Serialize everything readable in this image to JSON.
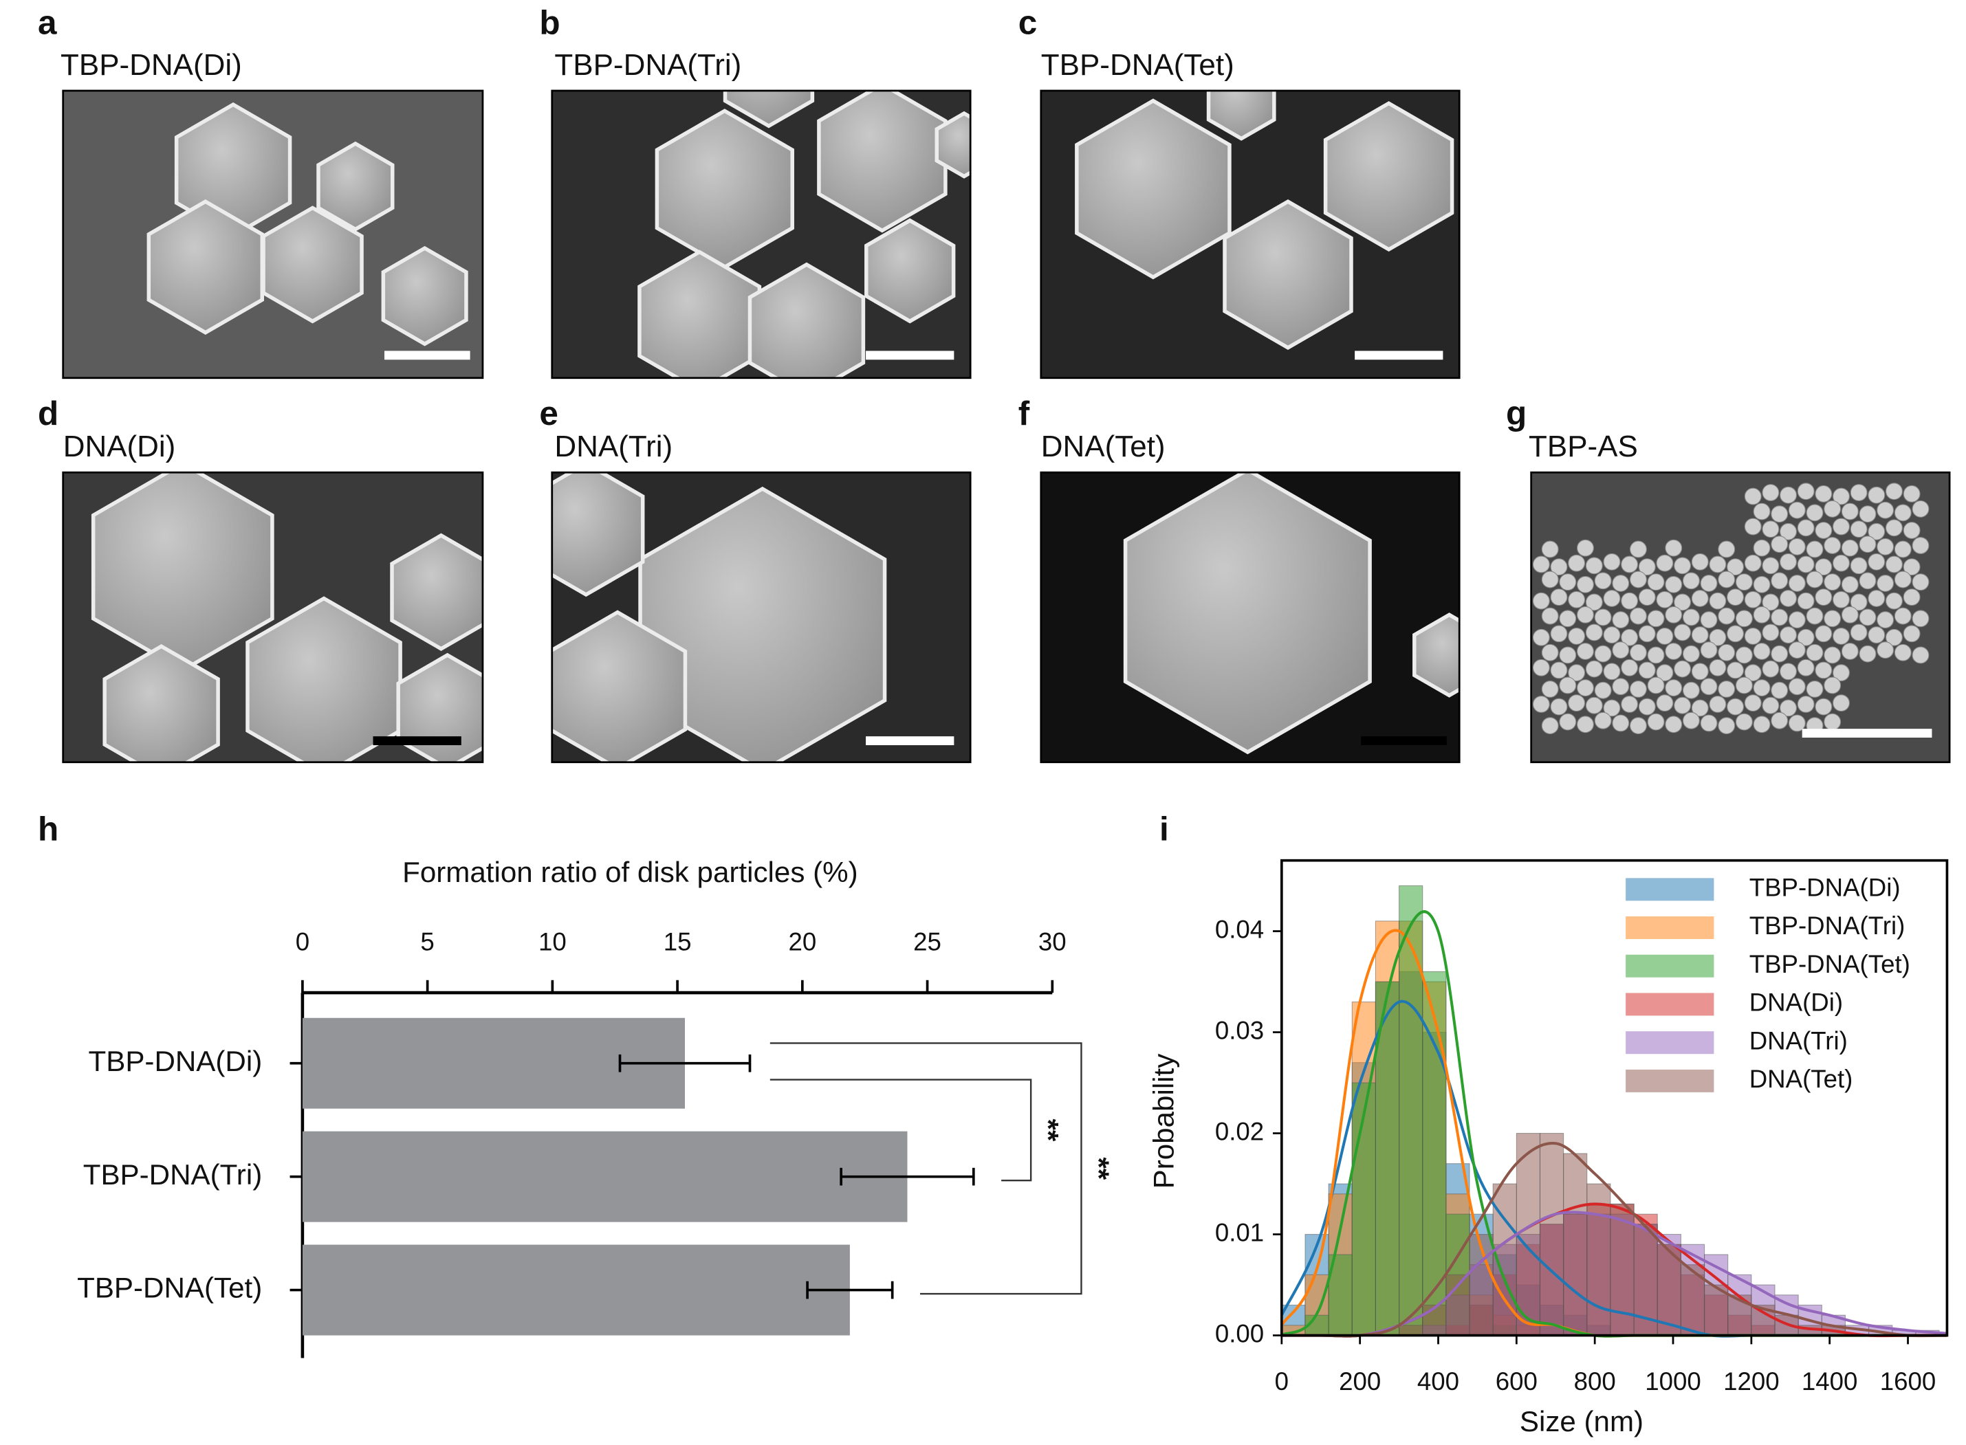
{
  "panels": [
    {
      "letter": "a",
      "caption": "TBP-DNA(Di)"
    },
    {
      "letter": "b",
      "caption": "TBP-DNA(Tri)"
    },
    {
      "letter": "c",
      "caption": "TBP-DNA(Tet)"
    },
    {
      "letter": "d",
      "caption": "DNA(Di)"
    },
    {
      "letter": "e",
      "caption": "DNA(Tri)"
    },
    {
      "letter": "f",
      "caption": "DNA(Tet)"
    },
    {
      "letter": "g",
      "caption": "TBP-AS"
    }
  ],
  "chart_data": [
    {
      "type": "bar",
      "orientation": "horizontal",
      "panel_label": "h",
      "title": "Formation ratio of disk particles (%)",
      "categories": [
        "TBP-DNA(Di)",
        "TBP-DNA(Tri)",
        "TBP-DNA(Tet)"
      ],
      "values": [
        15.3,
        24.2,
        21.9
      ],
      "errors": [
        2.6,
        2.65,
        1.7
      ],
      "color": "#939598",
      "xlim": [
        0,
        30
      ],
      "xticks": [
        0,
        5,
        10,
        15,
        20,
        25,
        30
      ],
      "annotations": [
        {
          "text": "**",
          "from": "TBP-DNA(Di)",
          "to": "TBP-DNA(Tri)"
        },
        {
          "text": "**",
          "from": "TBP-DNA(Di)",
          "to": "TBP-DNA(Tet)"
        }
      ]
    },
    {
      "type": "histogram",
      "panel_label": "i",
      "xlabel": "Size (nm)",
      "ylabel": "Probability",
      "bins": [
        0,
        60,
        120,
        180,
        240,
        300,
        360,
        420,
        480,
        540,
        600,
        660,
        720,
        780,
        840,
        900,
        960,
        1020,
        1080,
        1140,
        1200,
        1260,
        1320,
        1380,
        1440,
        1500,
        1560,
        1620,
        1680
      ],
      "kde_x": [
        0,
        100,
        200,
        300,
        400,
        500,
        600,
        700,
        800,
        900,
        1000,
        1100,
        1200,
        1300,
        1400,
        1500,
        1600,
        1700
      ],
      "opacity": 0.5,
      "legend": "upper right",
      "series": [
        {
          "name": "TBP-DNA(Di)",
          "color": "#1f77b4",
          "values": [
            0.003,
            0.01,
            0.015,
            0.027,
            0.035,
            0.036,
            0.03,
            0.017,
            0.012,
            0.008,
            0.005,
            0.003,
            0.002,
            0.001,
            0,
            0,
            0,
            0,
            0,
            0,
            0,
            0,
            0,
            0,
            0,
            0,
            0,
            0
          ],
          "kde": [
            0.002,
            0.01,
            0.025,
            0.033,
            0.028,
            0.016,
            0.01,
            0.006,
            0.003,
            0.002,
            0.001,
            0,
            0,
            0,
            0,
            0,
            0,
            0
          ]
        },
        {
          "name": "TBP-DNA(Tri)",
          "color": "#ff7f0e",
          "values": [
            0.001,
            0.006,
            0.014,
            0.033,
            0.041,
            0.041,
            0.035,
            0.014,
            0.004,
            0.002,
            0.001,
            0,
            0,
            0,
            0,
            0,
            0,
            0,
            0,
            0,
            0,
            0,
            0,
            0,
            0,
            0,
            0,
            0
          ],
          "kde": [
            0.001,
            0.008,
            0.033,
            0.04,
            0.03,
            0.01,
            0.002,
            0.001,
            0,
            0,
            0,
            0,
            0,
            0,
            0,
            0,
            0,
            0
          ]
        },
        {
          "name": "TBP-DNA(Tet)",
          "color": "#2ca02c",
          "values": [
            0,
            0.002,
            0.008,
            0.025,
            0.035,
            0.0445,
            0.036,
            0.012,
            0.003,
            0.001,
            0,
            0,
            0,
            0,
            0,
            0,
            0,
            0,
            0,
            0,
            0,
            0,
            0,
            0,
            0,
            0,
            0,
            0
          ],
          "kde": [
            0,
            0.003,
            0.02,
            0.038,
            0.04,
            0.015,
            0.003,
            0.001,
            0,
            0,
            0,
            0,
            0,
            0,
            0,
            0,
            0,
            0
          ]
        },
        {
          "name": "DNA(Di)",
          "color": "#d62728",
          "values": [
            0,
            0,
            0,
            0,
            0,
            0,
            0,
            0.001,
            0.003,
            0.006,
            0.009,
            0.011,
            0.012,
            0.013,
            0.013,
            0.012,
            0.009,
            0.006,
            0.004,
            0.002,
            0.001,
            0,
            0,
            0,
            0,
            0,
            0,
            0
          ],
          "kde": [
            0,
            0,
            0,
            0.001,
            0.003,
            0.007,
            0.01,
            0.012,
            0.013,
            0.012,
            0.009,
            0.006,
            0.003,
            0.001,
            0.0005,
            0,
            0,
            0
          ]
        },
        {
          "name": "DNA(Tri)",
          "color": "#9467bd",
          "values": [
            0,
            0,
            0,
            0,
            0,
            0,
            0.001,
            0.004,
            0.007,
            0.009,
            0.01,
            0.011,
            0.012,
            0.012,
            0.012,
            0.011,
            0.01,
            0.009,
            0.008,
            0.006,
            0.005,
            0.004,
            0.003,
            0.002,
            0.001,
            0.001,
            0.0005,
            0.0005
          ],
          "kde": [
            0,
            0,
            0,
            0.001,
            0.003,
            0.007,
            0.01,
            0.012,
            0.012,
            0.011,
            0.009,
            0.007,
            0.005,
            0.003,
            0.002,
            0.001,
            0.0005,
            0.0002
          ]
        },
        {
          "name": "DNA(Tet)",
          "color": "#8c564b",
          "values": [
            0,
            0,
            0,
            0,
            0,
            0.001,
            0.003,
            0.006,
            0.01,
            0.015,
            0.02,
            0.02,
            0.018,
            0.015,
            0.013,
            0.011,
            0.009,
            0.007,
            0.005,
            0.004,
            0.003,
            0.002,
            0.001,
            0.001,
            0,
            0,
            0,
            0
          ],
          "kde": [
            0,
            0,
            0,
            0.001,
            0.005,
            0.011,
            0.017,
            0.019,
            0.016,
            0.012,
            0.008,
            0.005,
            0.003,
            0.002,
            0.001,
            0.0005,
            0,
            0
          ]
        }
      ],
      "xlim": [
        0,
        1700
      ],
      "ylim": [
        0,
        0.047
      ],
      "xticks": [
        0,
        200,
        400,
        600,
        800,
        1000,
        1200,
        1400,
        1600
      ],
      "yticks": [
        {
          "value": 0,
          "label": "0.00"
        },
        {
          "value": 0.01,
          "label": "0.01"
        },
        {
          "value": 0.02,
          "label": "0.02"
        },
        {
          "value": 0.03,
          "label": "0.03"
        },
        {
          "value": 0.04,
          "label": "0.04"
        }
      ]
    }
  ]
}
